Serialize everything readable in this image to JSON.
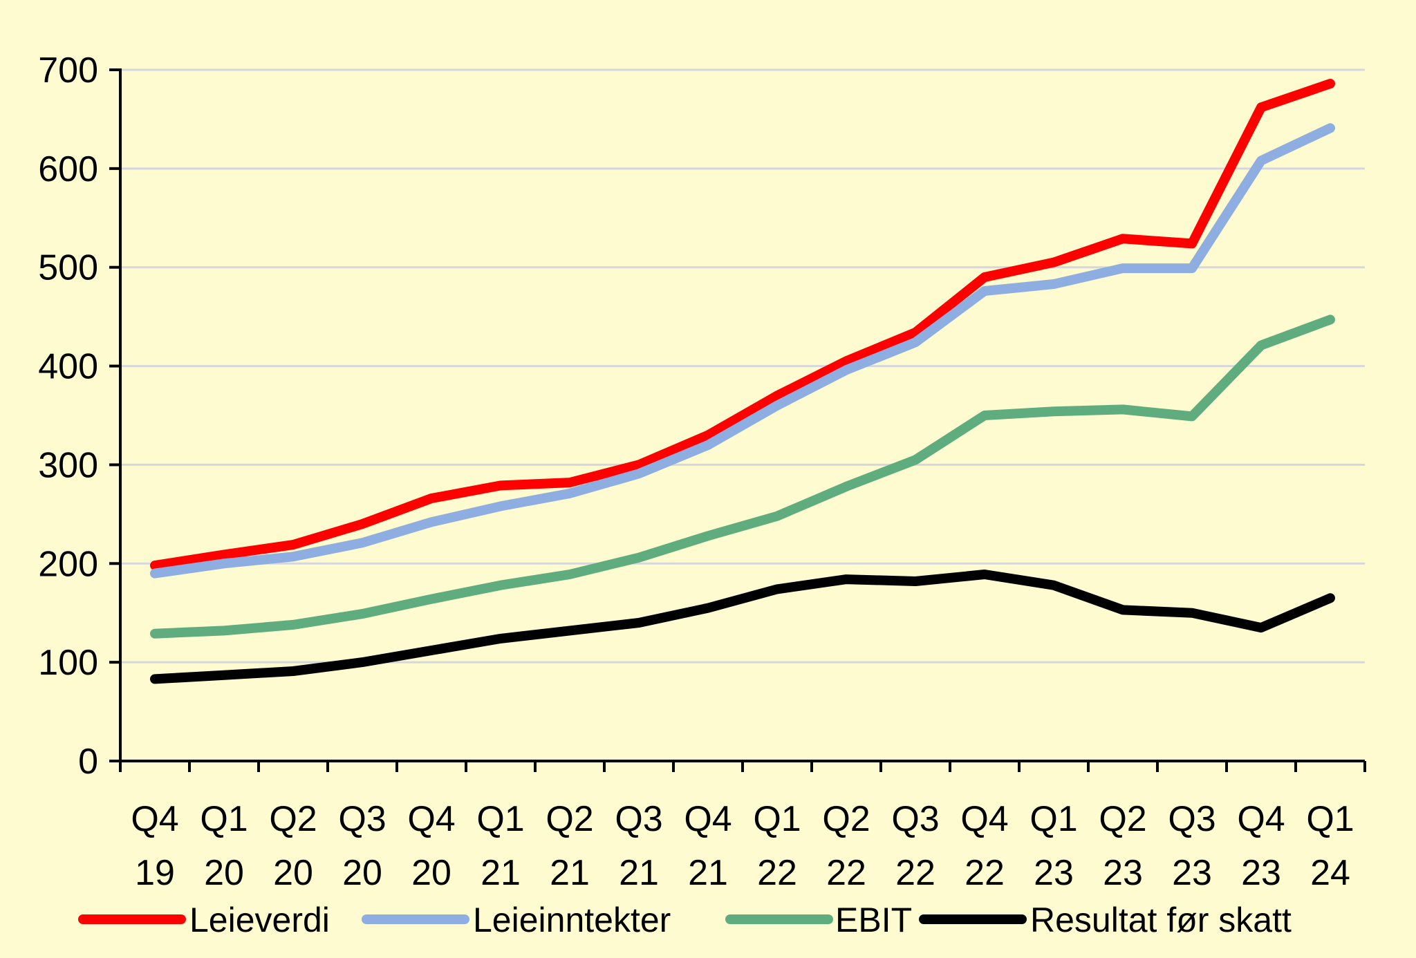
{
  "chart_data": {
    "type": "line",
    "title": "",
    "xlabel": "",
    "ylabel": "",
    "ylim": [
      0,
      700
    ],
    "yticks": [
      0,
      100,
      200,
      300,
      400,
      500,
      600,
      700
    ],
    "grid": true,
    "legend_position": "bottom",
    "colors": {
      "background": "#FFFBD0",
      "grid": "#D6D6DE",
      "axis": "#000000"
    },
    "categories": [
      [
        "Q4",
        "19"
      ],
      [
        "Q1",
        "20"
      ],
      [
        "Q2",
        "20"
      ],
      [
        "Q3",
        "20"
      ],
      [
        "Q4",
        "20"
      ],
      [
        "Q1",
        "21"
      ],
      [
        "Q2",
        "21"
      ],
      [
        "Q3",
        "21"
      ],
      [
        "Q4",
        "21"
      ],
      [
        "Q1",
        "22"
      ],
      [
        "Q2",
        "22"
      ],
      [
        "Q3",
        "22"
      ],
      [
        "Q4",
        "22"
      ],
      [
        "Q1",
        "23"
      ],
      [
        "Q2",
        "23"
      ],
      [
        "Q3",
        "23"
      ],
      [
        "Q4",
        "23"
      ],
      [
        "Q1",
        "24"
      ]
    ],
    "series": [
      {
        "name": "Leieverdi",
        "color": "#FF0000",
        "values": [
          198,
          209,
          219,
          240,
          266,
          279,
          282,
          300,
          330,
          370,
          405,
          434,
          490,
          505,
          529,
          524,
          662,
          686
        ]
      },
      {
        "name": "Leieinntekter",
        "color": "#8EADE0",
        "values": [
          190,
          200,
          207,
          221,
          242,
          258,
          271,
          291,
          320,
          360,
          396,
          424,
          476,
          483,
          499,
          499,
          608,
          641
        ]
      },
      {
        "name": "EBIT",
        "color": "#5FAD7F",
        "values": [
          129,
          132,
          138,
          149,
          164,
          178,
          189,
          206,
          228,
          248,
          278,
          305,
          350,
          354,
          356,
          349,
          421,
          447
        ]
      },
      {
        "name": "Resultat før skatt",
        "color": "#000000",
        "values": [
          83,
          87,
          91,
          100,
          112,
          124,
          132,
          140,
          155,
          174,
          184,
          182,
          189,
          178,
          153,
          150,
          135,
          165
        ]
      }
    ]
  }
}
